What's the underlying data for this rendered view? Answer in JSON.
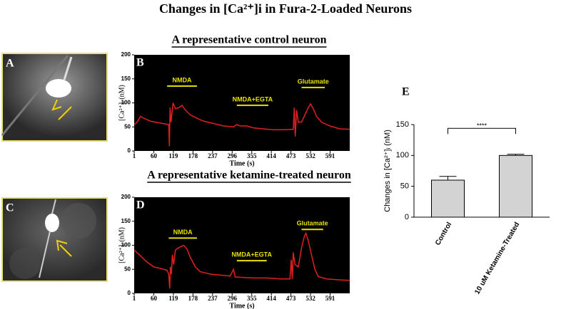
{
  "title": "Changes in [Ca²⁺]i in Fura-2-Loaded Neurons",
  "images": [
    {
      "panel": "A"
    },
    {
      "panel": "C"
    }
  ],
  "chart_data": [
    {
      "type": "line",
      "panel": "B",
      "subtitle": "A representative control neuron",
      "xlabel": "Time (s)",
      "ylabel": "[Ca²⁺]ᵢ (nM)",
      "xlim": [
        1,
        650
      ],
      "xticks": [
        1,
        60,
        119,
        178,
        237,
        296,
        355,
        414,
        473,
        532,
        591
      ],
      "ylim": [
        0,
        200
      ],
      "yticks": [
        0,
        50,
        100,
        150,
        200
      ],
      "color": "#e02020",
      "x": [
        1,
        10,
        20,
        30,
        50,
        80,
        105,
        107,
        109,
        112,
        118,
        125,
        135,
        145,
        155,
        170,
        190,
        210,
        240,
        270,
        300,
        310,
        320,
        340,
        360,
        390,
        420,
        450,
        480,
        483,
        486,
        490,
        495,
        505,
        515,
        525,
        532,
        540,
        550,
        565,
        590,
        620,
        650
      ],
      "values": [
        55,
        60,
        72,
        68,
        62,
        58,
        55,
        10,
        90,
        60,
        100,
        88,
        90,
        95,
        85,
        75,
        68,
        62,
        57,
        52,
        50,
        55,
        52,
        52,
        48,
        46,
        44,
        44,
        45,
        90,
        30,
        85,
        60,
        60,
        75,
        90,
        98,
        88,
        72,
        60,
        52,
        46,
        45
      ],
      "annotations": [
        {
          "text": "NMDA",
          "x": [
            100,
            190
          ],
          "y": 135
        },
        {
          "text": "NMDA+EGTA",
          "x": [
            310,
            405
          ],
          "y": 95
        },
        {
          "text": "Glutamate",
          "x": [
            505,
            575
          ],
          "y": 132
        }
      ]
    },
    {
      "type": "line",
      "panel": "D",
      "subtitle": "A representative ketamine-treated neuron",
      "xlabel": "Time (s)",
      "ylabel": "[Ca²⁺]ᵢ (nM)",
      "xlim": [
        1,
        650
      ],
      "xticks": [
        1,
        60,
        119,
        178,
        237,
        296,
        355,
        414,
        473,
        532,
        591
      ],
      "ylim": [
        0,
        200
      ],
      "yticks": [
        0,
        50,
        100,
        150,
        200
      ],
      "color": "#e02020",
      "x": [
        1,
        20,
        40,
        60,
        80,
        100,
        105,
        108,
        110,
        113,
        116,
        120,
        125,
        135,
        150,
        160,
        170,
        185,
        200,
        230,
        260,
        290,
        300,
        305,
        330,
        360,
        400,
        440,
        470,
        474,
        477,
        480,
        485,
        495,
        505,
        513,
        518,
        525,
        535,
        545,
        555,
        580,
        620,
        650
      ],
      "values": [
        90,
        78,
        65,
        55,
        52,
        48,
        40,
        10,
        55,
        40,
        80,
        60,
        90,
        95,
        100,
        92,
        75,
        55,
        45,
        40,
        38,
        36,
        50,
        34,
        33,
        32,
        32,
        30,
        30,
        70,
        30,
        85,
        60,
        55,
        95,
        118,
        125,
        110,
        80,
        50,
        35,
        30,
        28,
        27
      ],
      "annotations": [
        {
          "text": "NMDA",
          "x": [
            105,
            190
          ],
          "y": 115
        },
        {
          "text": "NMDA+EGTA",
          "x": [
            310,
            400
          ],
          "y": 68
        },
        {
          "text": "Glutamate",
          "x": [
            505,
            570
          ],
          "y": 133
        }
      ]
    },
    {
      "type": "bar",
      "panel": "E",
      "ylabel": "Changes in [Ca²⁺]ᵢ (nM)",
      "categories": [
        "Control",
        "10 uM Ketamine-Treated"
      ],
      "values": [
        60,
        100
      ],
      "errors": [
        6,
        2
      ],
      "color": "#d3d3d3",
      "ylim": [
        0,
        150
      ],
      "yticks": [
        0,
        50,
        100,
        150
      ],
      "significance": {
        "text": "****",
        "y": 144
      }
    }
  ]
}
